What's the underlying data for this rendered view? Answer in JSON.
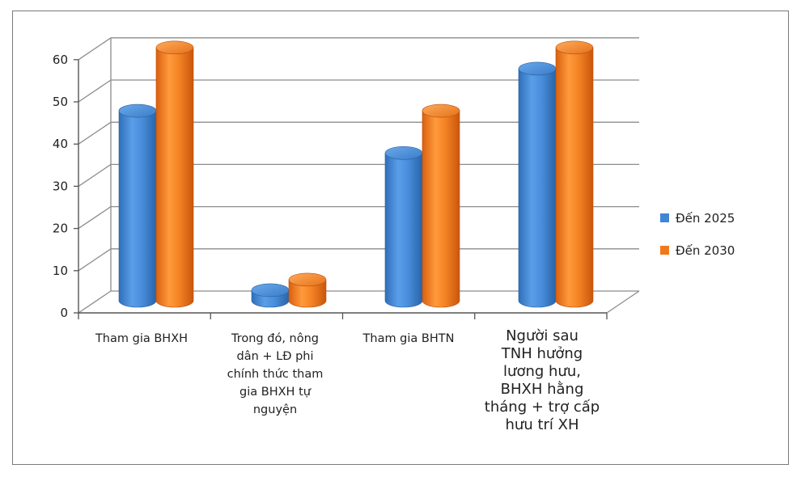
{
  "chart_data": {
    "type": "bar",
    "title": "",
    "xlabel": "",
    "ylabel": "",
    "ylim": [
      0,
      60
    ],
    "yticks": [
      0,
      10,
      20,
      30,
      40,
      50,
      60
    ],
    "grid": true,
    "legend_position": "right",
    "categories": [
      [
        "Tham gia BHXH"
      ],
      [
        "Trong đó, nông",
        "dân + LĐ phi",
        "chính thức tham",
        "gia BHXH tự",
        "nguyện"
      ],
      [
        "Tham gia BHTN"
      ],
      [
        "Người sau",
        "TNH hưởng",
        "lương hưu,",
        "BHXH hằng",
        "tháng + trợ cấp",
        "hưu trí XH"
      ]
    ],
    "series": [
      {
        "name": "Đến 2025",
        "color": "#3f86d6",
        "values": [
          45,
          2.5,
          35,
          55
        ]
      },
      {
        "name": "Đến 2030",
        "color": "#f07a1a",
        "values": [
          60,
          5,
          45,
          60
        ]
      }
    ]
  }
}
